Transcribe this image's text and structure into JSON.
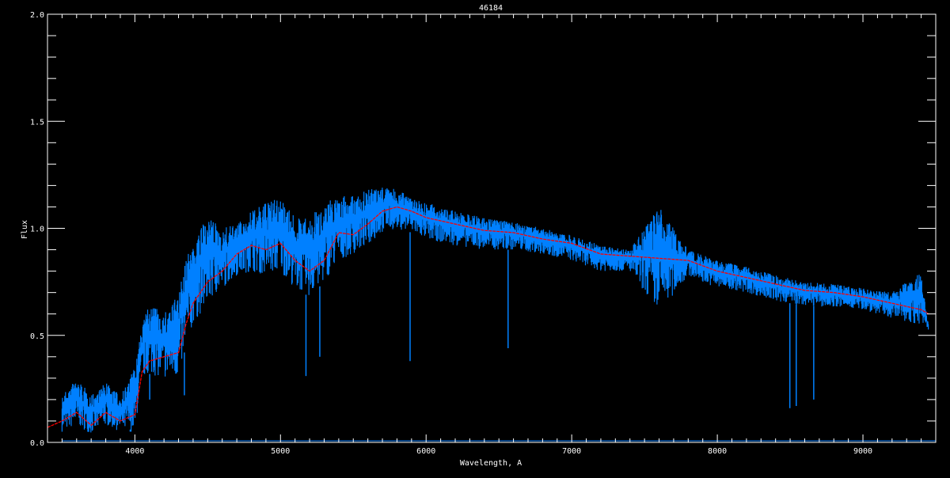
{
  "chart_data": {
    "type": "line",
    "title": "46184",
    "xlabel": "Wavelength, A",
    "ylabel": "Flux",
    "xlim": [
      3400,
      9500
    ],
    "ylim": [
      0.0,
      2.0
    ],
    "xticks": [
      4000,
      5000,
      6000,
      7000,
      8000,
      9000
    ],
    "xtick_labels": [
      "4000",
      "5000",
      "6000",
      "7000",
      "8000",
      "9000"
    ],
    "yticks": [
      0.0,
      0.5,
      1.0,
      1.5,
      2.0
    ],
    "ytick_labels": [
      "0.0",
      "0.5",
      "1.0",
      "1.5",
      "2.0"
    ],
    "grid": false,
    "colors": {
      "background": "#000000",
      "axes": "#ffffff",
      "observed": "#0080ff",
      "model": "#ff0000"
    },
    "series": [
      {
        "role": "observed",
        "x": [
          3500,
          3600,
          3700,
          3800,
          3900,
          4000,
          4050,
          4100,
          4200,
          4300,
          4350,
          4400,
          4500,
          4600,
          4700,
          4800,
          4900,
          5000,
          5100,
          5200,
          5300,
          5400,
          5500,
          5600,
          5700,
          5800,
          5900,
          6000,
          6200,
          6400,
          6600,
          6800,
          7000,
          7200,
          7400,
          7600,
          7800,
          8000,
          8200,
          8400,
          8600,
          8800,
          9000,
          9200,
          9400,
          9450
        ],
        "low": [
          0.05,
          0.08,
          0.04,
          0.08,
          0.05,
          0.05,
          0.3,
          0.32,
          0.3,
          0.3,
          0.45,
          0.55,
          0.65,
          0.72,
          0.78,
          0.8,
          0.78,
          0.8,
          0.72,
          0.68,
          0.75,
          0.85,
          0.88,
          0.92,
          0.98,
          1.0,
          0.98,
          0.95,
          0.92,
          0.9,
          0.9,
          0.88,
          0.85,
          0.8,
          0.8,
          0.6,
          0.78,
          0.72,
          0.7,
          0.66,
          0.64,
          0.63,
          0.62,
          0.58,
          0.55,
          0.5
        ],
        "high": [
          0.22,
          0.3,
          0.22,
          0.28,
          0.22,
          0.35,
          0.55,
          0.65,
          0.6,
          0.7,
          0.85,
          0.95,
          1.05,
          1.0,
          1.02,
          1.08,
          1.12,
          1.15,
          1.05,
          1.05,
          1.12,
          1.15,
          1.15,
          1.18,
          1.2,
          1.18,
          1.15,
          1.12,
          1.08,
          1.05,
          1.03,
          1.0,
          0.97,
          0.92,
          0.9,
          1.1,
          0.9,
          0.85,
          0.82,
          0.78,
          0.75,
          0.74,
          0.72,
          0.7,
          0.8,
          0.55
        ],
        "absorption_lines": [
          [
            3934,
            0.05
          ],
          [
            3968,
            0.06
          ],
          [
            4102,
            0.2
          ],
          [
            4340,
            0.22
          ],
          [
            5175,
            0.31
          ],
          [
            5270,
            0.4
          ],
          [
            5890,
            0.38
          ],
          [
            6563,
            0.44
          ],
          [
            8498,
            0.16
          ],
          [
            8542,
            0.17
          ],
          [
            8662,
            0.2
          ]
        ]
      },
      {
        "role": "model",
        "x": [
          3400,
          3500,
          3600,
          3700,
          3800,
          3900,
          4000,
          4050,
          4100,
          4200,
          4300,
          4350,
          4400,
          4500,
          4600,
          4700,
          4800,
          4900,
          5000,
          5100,
          5200,
          5300,
          5400,
          5500,
          5600,
          5700,
          5800,
          5900,
          6000,
          6200,
          6400,
          6600,
          6800,
          7000,
          7200,
          7400,
          7600,
          7800,
          8000,
          8200,
          8400,
          8600,
          8800,
          9000,
          9200,
          9400,
          9450
        ],
        "y": [
          0.07,
          0.1,
          0.14,
          0.08,
          0.14,
          0.1,
          0.13,
          0.33,
          0.38,
          0.4,
          0.42,
          0.55,
          0.65,
          0.75,
          0.8,
          0.88,
          0.92,
          0.9,
          0.93,
          0.85,
          0.8,
          0.85,
          0.98,
          0.97,
          1.02,
          1.08,
          1.1,
          1.08,
          1.05,
          1.02,
          0.99,
          0.98,
          0.95,
          0.93,
          0.88,
          0.87,
          0.86,
          0.85,
          0.8,
          0.77,
          0.74,
          0.71,
          0.7,
          0.68,
          0.65,
          0.62,
          0.6
        ]
      }
    ]
  }
}
